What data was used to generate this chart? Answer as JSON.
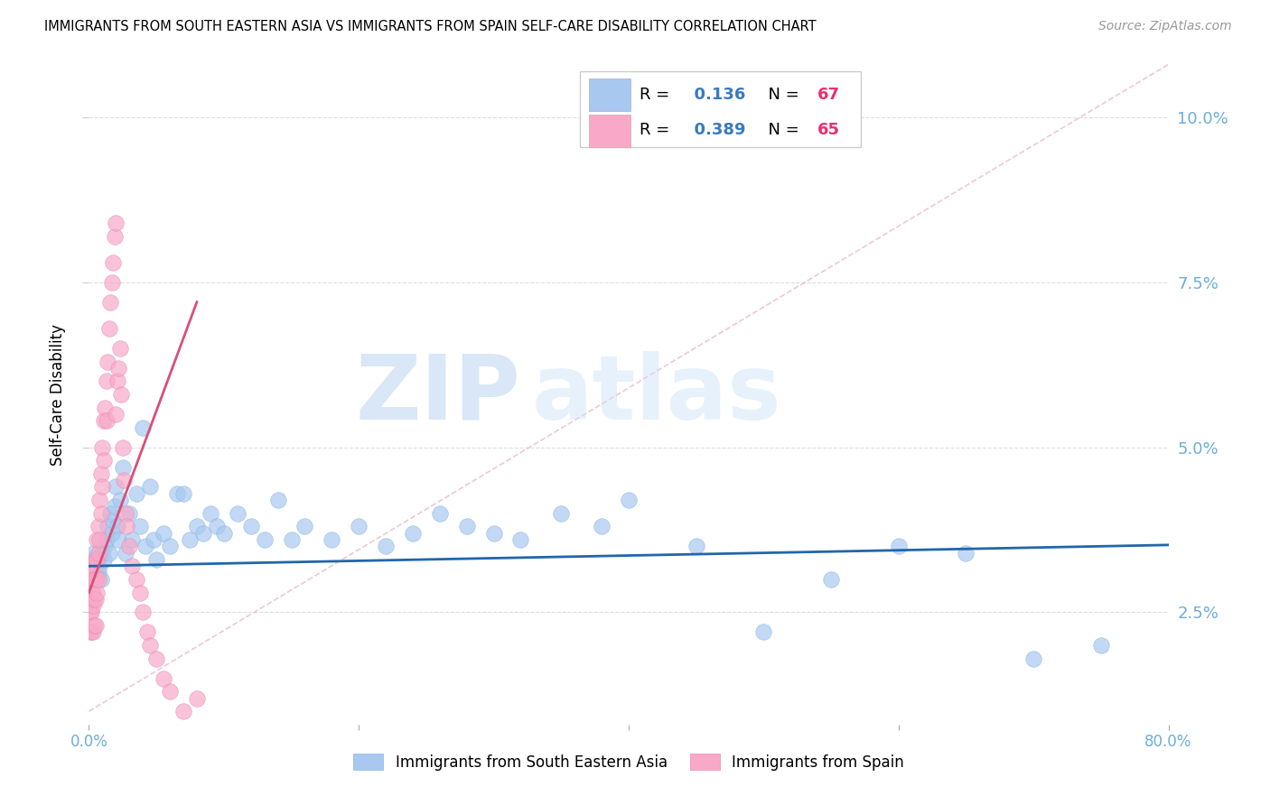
{
  "title": "IMMIGRANTS FROM SOUTH EASTERN ASIA VS IMMIGRANTS FROM SPAIN SELF-CARE DISABILITY CORRELATION CHART",
  "source": "Source: ZipAtlas.com",
  "ylabel": "Self-Care Disability",
  "y_ticks": [
    0.025,
    0.05,
    0.075,
    0.1
  ],
  "y_tick_labels": [
    "2.5%",
    "5.0%",
    "7.5%",
    "10.0%"
  ],
  "x_min": 0.0,
  "x_max": 0.8,
  "y_min": 0.008,
  "y_max": 0.108,
  "series1_label": "Immigrants from South Eastern Asia",
  "series1_color": "#a8c8f0",
  "series1_line_color": "#2166ac",
  "series1_R": 0.136,
  "series1_N": 67,
  "series2_label": "Immigrants from Spain",
  "series2_color": "#f9a8c8",
  "series2_line_color": "#d94f7a",
  "series2_R": 0.389,
  "series2_N": 65,
  "blue_scatter_x": [
    0.002,
    0.003,
    0.004,
    0.005,
    0.006,
    0.007,
    0.008,
    0.009,
    0.01,
    0.011,
    0.012,
    0.013,
    0.014,
    0.015,
    0.016,
    0.017,
    0.018,
    0.019,
    0.02,
    0.021,
    0.022,
    0.023,
    0.025,
    0.027,
    0.03,
    0.032,
    0.035,
    0.038,
    0.04,
    0.042,
    0.045,
    0.048,
    0.05,
    0.055,
    0.06,
    0.065,
    0.07,
    0.075,
    0.08,
    0.085,
    0.09,
    0.095,
    0.1,
    0.11,
    0.12,
    0.13,
    0.14,
    0.15,
    0.16,
    0.18,
    0.2,
    0.22,
    0.24,
    0.26,
    0.28,
    0.3,
    0.32,
    0.35,
    0.38,
    0.4,
    0.45,
    0.5,
    0.55,
    0.6,
    0.65,
    0.7,
    0.75
  ],
  "blue_scatter_y": [
    0.033,
    0.031,
    0.034,
    0.032,
    0.033,
    0.031,
    0.032,
    0.03,
    0.034,
    0.033,
    0.035,
    0.036,
    0.038,
    0.034,
    0.04,
    0.037,
    0.039,
    0.041,
    0.044,
    0.038,
    0.036,
    0.042,
    0.047,
    0.034,
    0.04,
    0.036,
    0.043,
    0.038,
    0.053,
    0.035,
    0.044,
    0.036,
    0.033,
    0.037,
    0.035,
    0.043,
    0.043,
    0.036,
    0.038,
    0.037,
    0.04,
    0.038,
    0.037,
    0.04,
    0.038,
    0.036,
    0.042,
    0.036,
    0.038,
    0.036,
    0.038,
    0.035,
    0.037,
    0.04,
    0.038,
    0.037,
    0.036,
    0.04,
    0.038,
    0.042,
    0.035,
    0.022,
    0.03,
    0.035,
    0.034,
    0.018,
    0.02
  ],
  "pink_scatter_x": [
    0.001,
    0.001,
    0.001,
    0.001,
    0.001,
    0.002,
    0.002,
    0.002,
    0.002,
    0.003,
    0.003,
    0.003,
    0.003,
    0.004,
    0.004,
    0.004,
    0.005,
    0.005,
    0.005,
    0.005,
    0.006,
    0.006,
    0.006,
    0.007,
    0.007,
    0.007,
    0.008,
    0.008,
    0.009,
    0.009,
    0.01,
    0.01,
    0.011,
    0.011,
    0.012,
    0.013,
    0.013,
    0.014,
    0.015,
    0.016,
    0.017,
    0.018,
    0.019,
    0.02,
    0.02,
    0.021,
    0.022,
    0.023,
    0.024,
    0.025,
    0.026,
    0.027,
    0.028,
    0.03,
    0.032,
    0.035,
    0.038,
    0.04,
    0.043,
    0.045,
    0.05,
    0.055,
    0.06,
    0.07,
    0.08
  ],
  "pink_scatter_y": [
    0.032,
    0.03,
    0.027,
    0.025,
    0.022,
    0.031,
    0.028,
    0.025,
    0.022,
    0.031,
    0.028,
    0.026,
    0.022,
    0.03,
    0.027,
    0.023,
    0.033,
    0.03,
    0.027,
    0.023,
    0.036,
    0.033,
    0.028,
    0.038,
    0.034,
    0.03,
    0.042,
    0.036,
    0.046,
    0.04,
    0.05,
    0.044,
    0.054,
    0.048,
    0.056,
    0.06,
    0.054,
    0.063,
    0.068,
    0.072,
    0.075,
    0.078,
    0.082,
    0.084,
    0.055,
    0.06,
    0.062,
    0.065,
    0.058,
    0.05,
    0.045,
    0.04,
    0.038,
    0.035,
    0.032,
    0.03,
    0.028,
    0.025,
    0.022,
    0.02,
    0.018,
    0.015,
    0.013,
    0.01,
    0.012
  ],
  "diag_line_color": "#e8a0b8",
  "legend_R_color": "#3a7abf",
  "legend_N1_color": "#e8316e",
  "legend_N2_color": "#e8316e"
}
